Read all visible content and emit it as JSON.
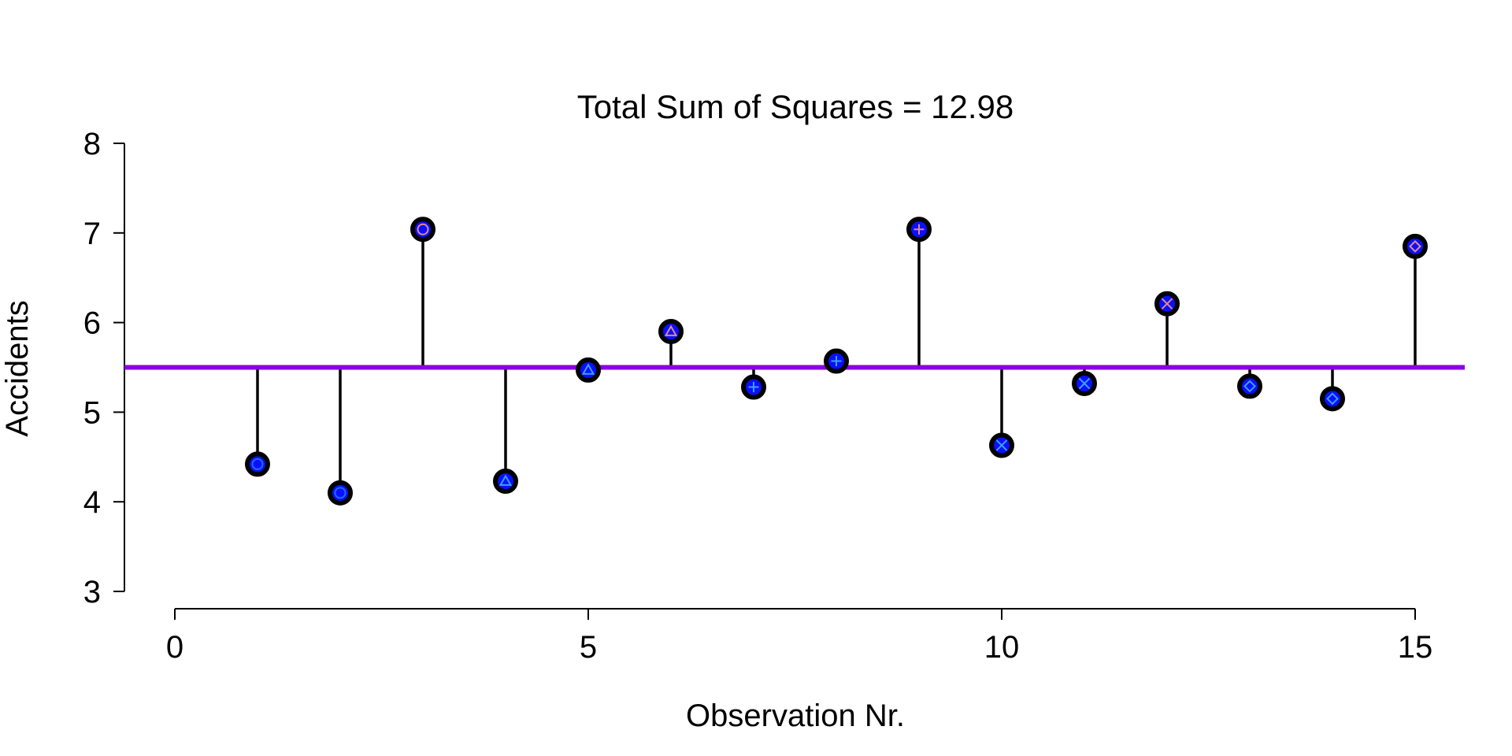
{
  "chart_data": {
    "type": "scatter",
    "title": "Total Sum of Squares = 12.98",
    "xlabel": "Observation Nr.",
    "ylabel": "Accidents",
    "xlim": [
      -0.6,
      15.6
    ],
    "ylim": [
      3,
      8
    ],
    "xticks": [
      0,
      5,
      10,
      15
    ],
    "yticks": [
      3,
      4,
      5,
      6,
      7,
      8
    ],
    "mean": 5.5,
    "grid": false,
    "legend": "none",
    "x": [
      1,
      2,
      3,
      4,
      5,
      6,
      7,
      8,
      9,
      10,
      11,
      12,
      13,
      14,
      15
    ],
    "y": [
      4.42,
      4.1,
      7.04,
      4.23,
      5.47,
      5.9,
      5.28,
      5.57,
      7.04,
      4.63,
      5.32,
      6.21,
      5.29,
      5.15,
      6.85
    ],
    "markers": [
      "circle",
      "circle",
      "circle",
      "triangle",
      "triangle",
      "triangle",
      "plus",
      "plus",
      "plus",
      "cross",
      "cross",
      "cross",
      "diamond",
      "diamond",
      "diamond"
    ],
    "marker_colors": [
      "#1e6bff",
      "#1e6bff",
      "#e08a8a",
      "#3aa0ff",
      "#3aa0ff",
      "#e08a8a",
      "#3aa0ff",
      "#3aa0ff",
      "#e08a8a",
      "#3aa0ff",
      "#3aa0ff",
      "#e08a8a",
      "#3aa0ff",
      "#3aa0ff",
      "#e08a8a"
    ],
    "colors": {
      "mean_line": "#8a00e6",
      "residual_line": "#000000",
      "point_fill": "#0a10ff",
      "point_outline": "#000000"
    }
  }
}
